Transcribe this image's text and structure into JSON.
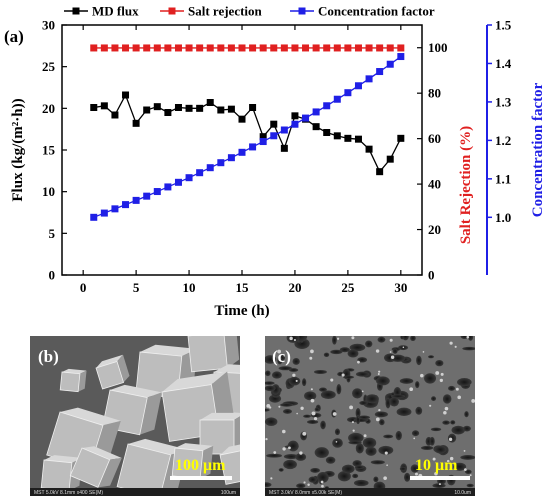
{
  "colors": {
    "flux": "#000000",
    "rejection": "#e02020",
    "concentration": "#1f1fe6",
    "sem_bg": "#555555"
  },
  "panels": {
    "a": "(a)",
    "b": "(b)",
    "c": "(c)"
  },
  "sem": {
    "b_scale": "100 μm",
    "c_scale": "10 μm",
    "b_footer": "MST 5.0kV 8.1mm x400 SE(M)",
    "b_footer_right": "100um",
    "c_footer": "MST 3.0kV 8.0mm x5.00k SE(M)",
    "c_footer_right": "10.0um"
  },
  "chart_data": {
    "type": "line",
    "xlabel": "Time (h)",
    "ylabel_left": "Flux (kg/(m²·h))",
    "ylabel_right1": "Salt Rejection (%)",
    "ylabel_right2": "Concentration factor",
    "xlim": [
      -2,
      32
    ],
    "x_ticks": [
      0,
      5,
      10,
      15,
      20,
      25,
      30
    ],
    "ylim_left": [
      0,
      30
    ],
    "y_ticks_left": [
      0,
      5,
      10,
      15,
      20,
      25,
      30
    ],
    "ylim_right1": [
      0,
      110
    ],
    "y_ticks_right1": [
      0,
      20,
      40,
      60,
      80,
      100
    ],
    "ylim_right2": [
      0.85,
      1.5
    ],
    "y_ticks_right2": [
      1.0,
      1.1,
      1.2,
      1.3,
      1.4,
      1.5
    ],
    "legend_position": "top",
    "x": [
      1,
      2,
      3,
      4,
      5,
      6,
      7,
      8,
      9,
      10,
      11,
      12,
      13,
      14,
      15,
      16,
      17,
      18,
      19,
      20,
      21,
      22,
      23,
      24,
      25,
      26,
      27,
      28,
      29,
      30
    ],
    "series": [
      {
        "name": "MD flux",
        "axis": "left",
        "marker": "square",
        "values": [
          20.1,
          20.3,
          19.2,
          21.6,
          18.2,
          19.8,
          20.2,
          19.5,
          20.1,
          20.0,
          20.0,
          20.7,
          19.8,
          19.9,
          18.7,
          20.1,
          16.6,
          18.1,
          15.2,
          19.1,
          18.7,
          17.8,
          17.1,
          16.7,
          16.4,
          16.3,
          15.1,
          12.4,
          13.9,
          16.4
        ]
      },
      {
        "name": "Salt rejection",
        "axis": "right1",
        "marker": "square",
        "values": [
          99.9,
          99.9,
          99.9,
          99.9,
          99.9,
          99.9,
          99.9,
          99.9,
          99.9,
          99.9,
          99.9,
          99.9,
          99.9,
          99.9,
          99.9,
          99.9,
          99.9,
          99.9,
          99.9,
          99.9,
          99.9,
          99.9,
          99.9,
          99.9,
          99.9,
          99.9,
          99.9,
          99.9,
          99.9,
          99.9
        ]
      },
      {
        "name": "Concentration factor",
        "axis": "right2",
        "marker": "square",
        "values": [
          1.0,
          1.011,
          1.022,
          1.033,
          1.044,
          1.055,
          1.067,
          1.079,
          1.091,
          1.103,
          1.116,
          1.129,
          1.142,
          1.155,
          1.169,
          1.183,
          1.197,
          1.212,
          1.227,
          1.242,
          1.258,
          1.274,
          1.29,
          1.307,
          1.324,
          1.342,
          1.36,
          1.379,
          1.398,
          1.418
        ]
      }
    ]
  }
}
